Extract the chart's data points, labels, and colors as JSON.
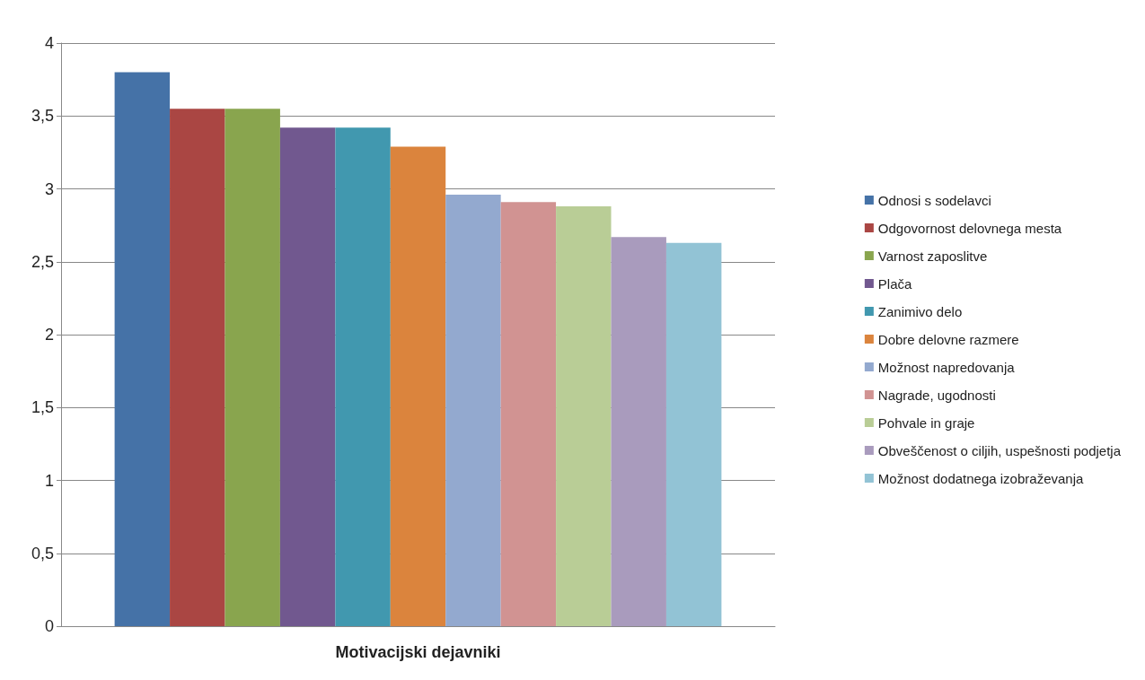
{
  "chart_data": {
    "type": "bar",
    "xlabel": "Motivacijski dejavniki",
    "categories": [
      null
    ],
    "series": [
      {
        "name": "Odnosi s sodelavci",
        "color": "#4572a7",
        "values": [
          3.8
        ]
      },
      {
        "name": "Odgovornost delovnega mesta",
        "color": "#aa4643",
        "values": [
          3.55
        ]
      },
      {
        "name": "Varnost zaposlitve",
        "color": "#89a54e",
        "values": [
          3.55
        ]
      },
      {
        "name": "Plača",
        "color": "#71588f",
        "values": [
          3.42
        ]
      },
      {
        "name": "Zanimivo delo",
        "color": "#4198af",
        "values": [
          3.42
        ]
      },
      {
        "name": "Dobre delovne razmere",
        "color": "#db843d",
        "values": [
          3.29
        ]
      },
      {
        "name": "Možnost napredovanja",
        "color": "#93a9cf",
        "values": [
          2.96
        ]
      },
      {
        "name": "Nagrade, ugodnosti",
        "color": "#d19392",
        "values": [
          2.91
        ]
      },
      {
        "name": "Pohvale in graje",
        "color": "#b9cd96",
        "values": [
          2.88
        ]
      },
      {
        "name": "Obveščenost o ciljih, uspešnosti podjetja",
        "color": "#a99bbd",
        "values": [
          2.67
        ]
      },
      {
        "name": "Možnost dodatnega izobraževanja",
        "color": "#92c3d5",
        "values": [
          2.63
        ]
      }
    ],
    "ylim": [
      0,
      4
    ],
    "yticks": [
      0,
      {
        "value": 0.5,
        "label": "0,5"
      },
      1,
      {
        "value": 1.5,
        "label": "1,5"
      },
      2,
      {
        "value": 2.5,
        "label": "2,5"
      },
      3,
      {
        "value": 3.5,
        "label": "3,5"
      },
      4
    ],
    "grid": "y",
    "legend": "right"
  }
}
